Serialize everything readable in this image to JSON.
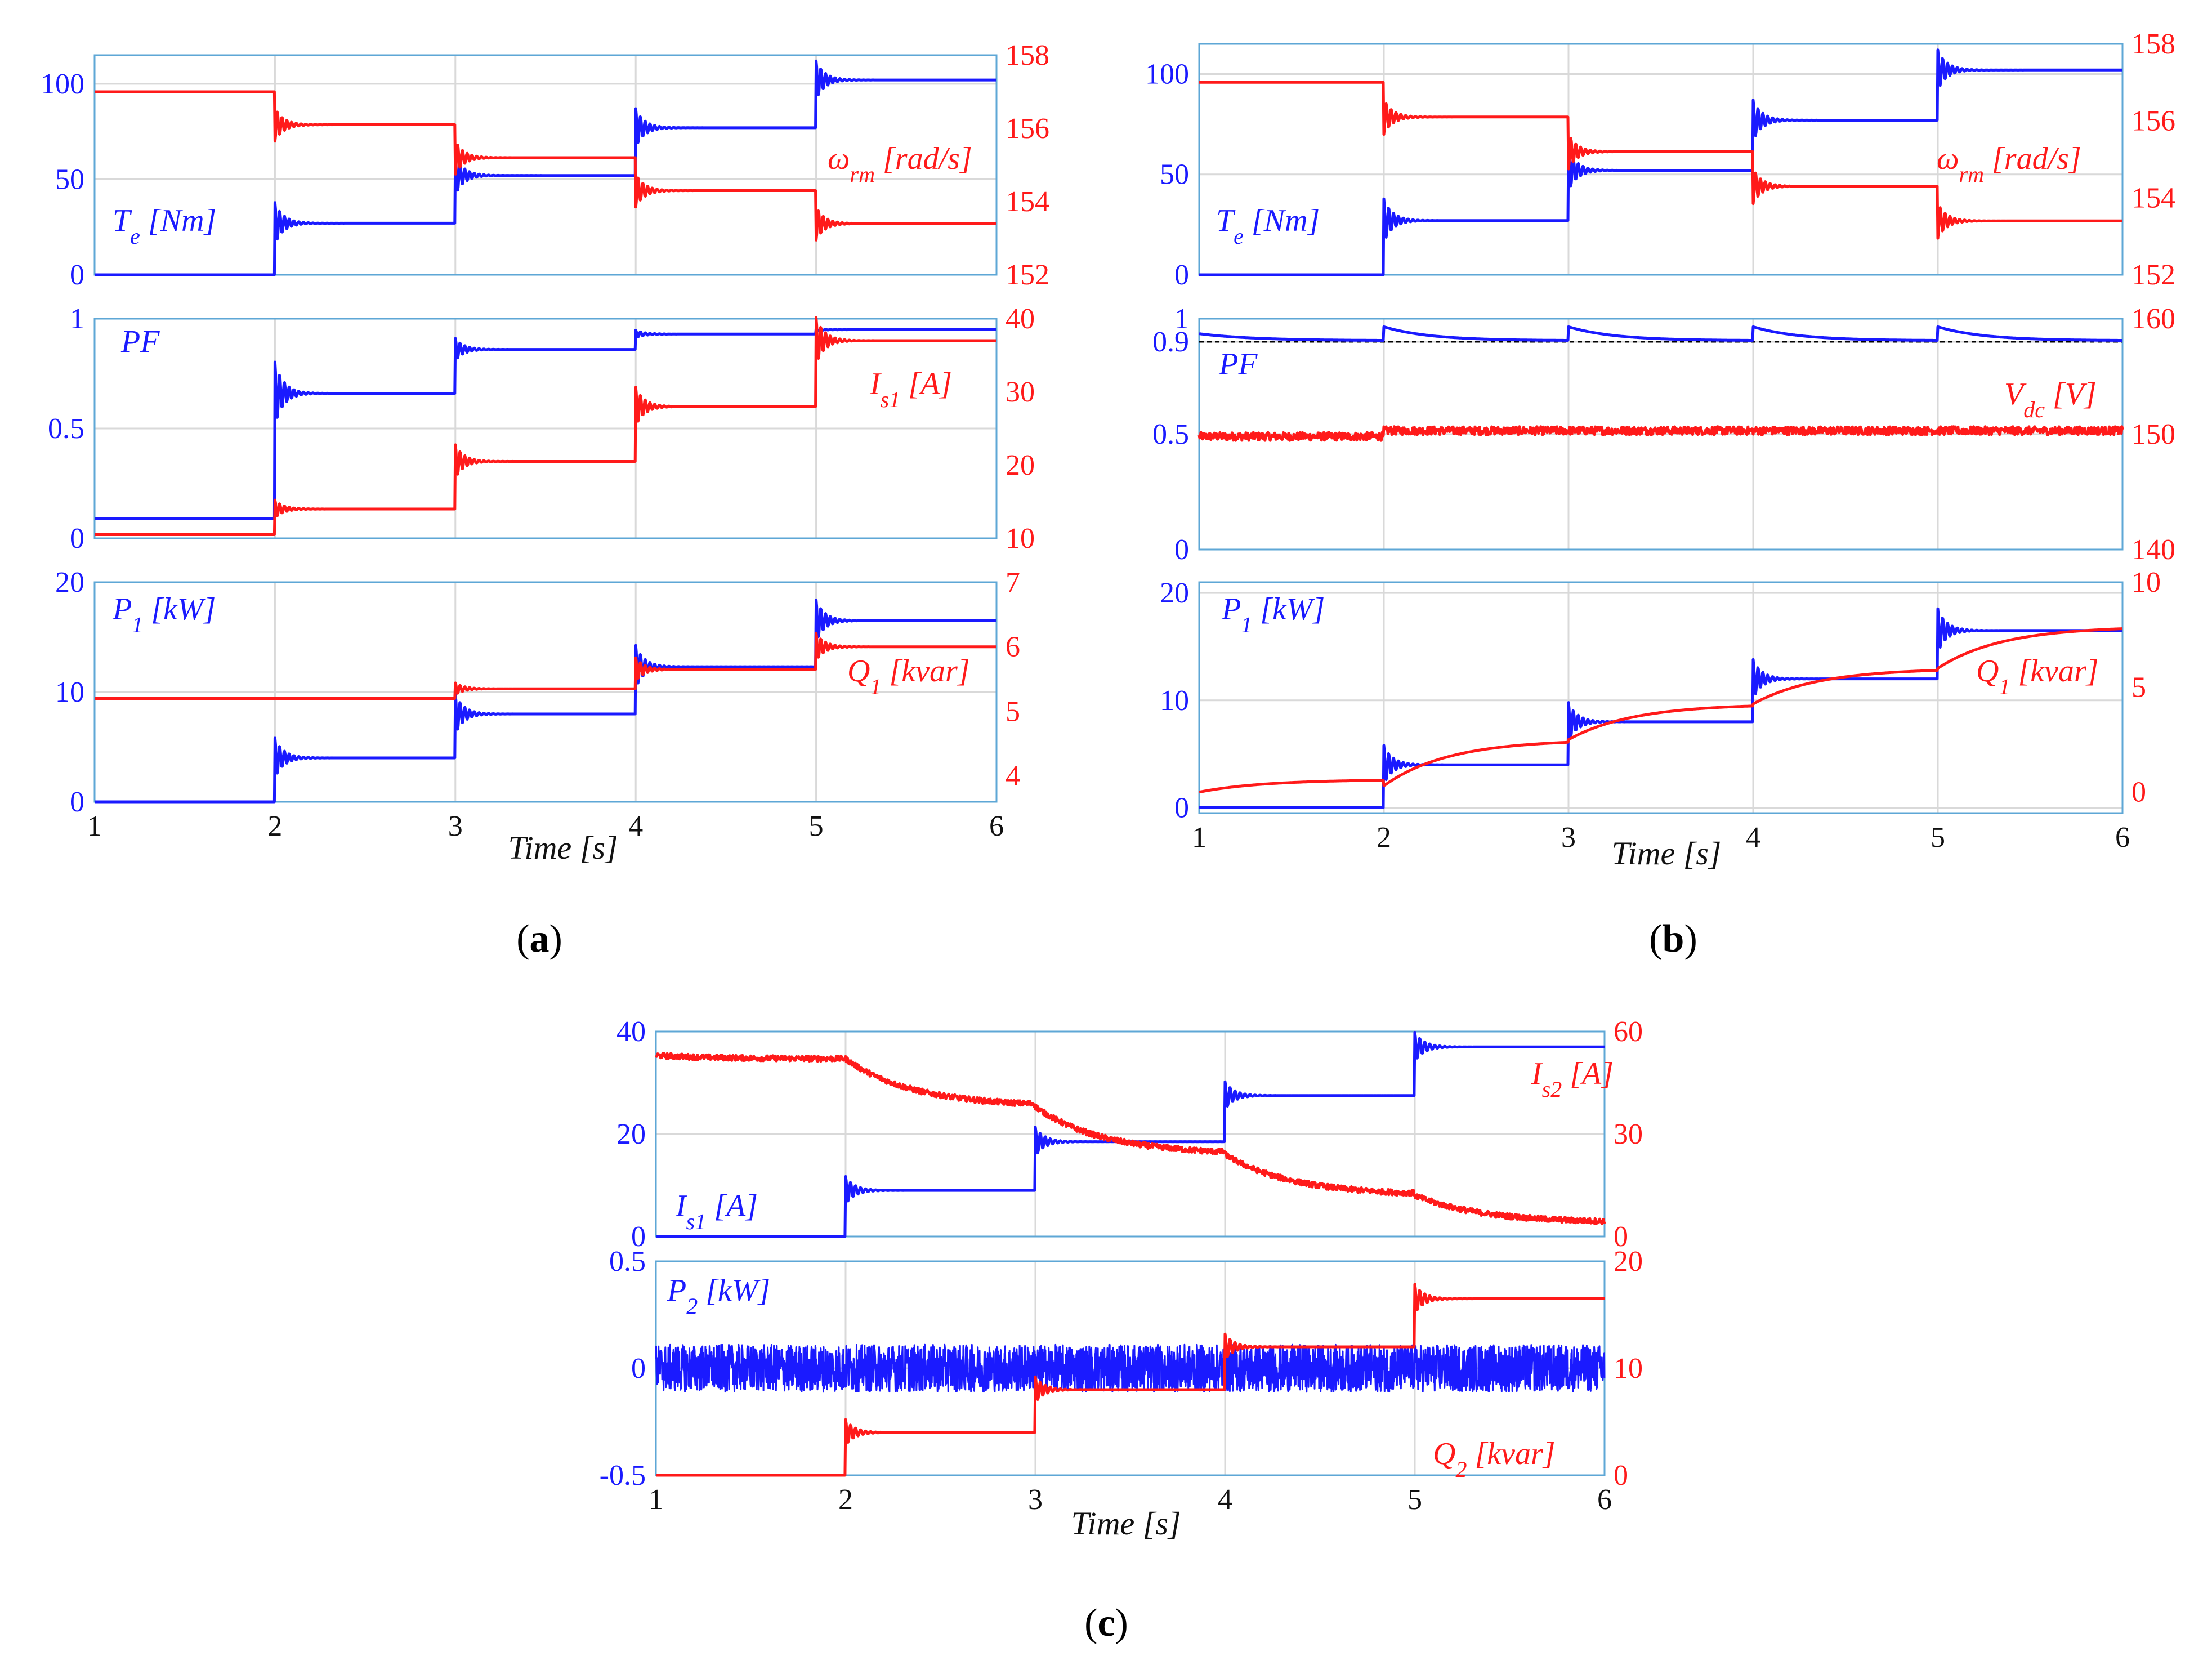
{
  "colors": {
    "blue": "#1a1aff",
    "red": "#ff1a1a",
    "grid": "#d9d9d9",
    "frame": "#5ea7d6",
    "ref": "#000000"
  },
  "captions": [
    "a",
    "b",
    "c"
  ],
  "chart_data": [
    {
      "id": "a1",
      "panel": "a",
      "type": "line",
      "x_range": [
        1,
        6
      ],
      "x_ticks": [
        1,
        2,
        3,
        4,
        5,
        6
      ],
      "show_x_ticks": false,
      "left_axis": {
        "ylim": [
          0,
          115
        ],
        "ticks": [
          0,
          50,
          100
        ],
        "tick_labels": [
          "0",
          "50",
          "100"
        ]
      },
      "right_axis": {
        "ylim": [
          152,
          158
        ],
        "ticks": [
          152,
          154,
          156,
          158
        ],
        "tick_labels": [
          "152",
          "154",
          "156",
          "158"
        ]
      },
      "series": [
        {
          "name": "Te [Nm]",
          "axis": "left",
          "color": "blue",
          "label": "T",
          "label_sub": "e",
          "label_suffix": " [Nm]",
          "steps": [
            [
              1,
              0
            ],
            [
              2,
              27
            ],
            [
              3,
              52
            ],
            [
              4,
              77
            ],
            [
              5,
              102
            ]
          ],
          "osc": 0.4,
          "noise": 0
        },
        {
          "name": "ωrm [rad/s]",
          "axis": "right",
          "color": "red",
          "label": "ω",
          "label_sub": "rm",
          "label_suffix": " [rad/s]",
          "steps": [
            [
              1,
              157.0
            ],
            [
              2,
              156.1
            ],
            [
              3,
              155.2
            ],
            [
              4,
              154.3
            ],
            [
              5,
              153.4
            ]
          ],
          "osc": 0.5,
          "noise": 0
        }
      ]
    },
    {
      "id": "a2",
      "panel": "a",
      "type": "line",
      "x_range": [
        1,
        6
      ],
      "x_ticks": [
        1,
        2,
        3,
        4,
        5,
        6
      ],
      "show_x_ticks": false,
      "left_axis": {
        "ylim": [
          0,
          1
        ],
        "ticks": [
          0,
          0.5,
          1
        ],
        "tick_labels": [
          "0",
          "0.5",
          "1"
        ]
      },
      "right_axis": {
        "ylim": [
          10,
          40
        ],
        "ticks": [
          10,
          20,
          30,
          40
        ],
        "tick_labels": [
          "10",
          "20",
          "30",
          "40"
        ]
      },
      "series": [
        {
          "name": "PF",
          "axis": "left",
          "color": "blue",
          "label": "PF",
          "label_sub": "",
          "label_suffix": "",
          "steps": [
            [
              1,
              0.09
            ],
            [
              2,
              0.66
            ],
            [
              3,
              0.86
            ],
            [
              4,
              0.93
            ],
            [
              5,
              0.95
            ]
          ],
          "osc": 0.25,
          "noise": 0
        },
        {
          "name": "Is1 [A]",
          "axis": "right",
          "color": "red",
          "label": "I",
          "label_sub": "s1",
          "label_suffix": " [A]",
          "steps": [
            [
              1,
              10.5
            ],
            [
              2,
              14
            ],
            [
              3,
              20.5
            ],
            [
              4,
              28
            ],
            [
              5,
              37
            ]
          ],
          "osc": 0.35,
          "noise": 0
        }
      ]
    },
    {
      "id": "a3",
      "panel": "a",
      "type": "line",
      "x_range": [
        1,
        6
      ],
      "x_ticks": [
        1,
        2,
        3,
        4,
        5,
        6
      ],
      "show_x_ticks": true,
      "x_tick_labels": [
        "1",
        "2",
        "3",
        "4",
        "5",
        "6"
      ],
      "xlabel": "Time [s]",
      "left_axis": {
        "ylim": [
          0,
          20
        ],
        "ticks": [
          0,
          10,
          20
        ],
        "tick_labels": [
          "0",
          "10",
          "20"
        ]
      },
      "right_axis": {
        "ylim": [
          3.6,
          7.0
        ],
        "ticks": [
          4,
          5,
          6,
          7
        ],
        "tick_labels": [
          "4",
          "5",
          "6",
          "7"
        ]
      },
      "series": [
        {
          "name": "P1 [kW]",
          "axis": "left",
          "color": "blue",
          "label": "P",
          "label_sub": "1",
          "label_suffix": " [kW]",
          "steps": [
            [
              1,
              0
            ],
            [
              2,
              4
            ],
            [
              3,
              8
            ],
            [
              4,
              12.3
            ],
            [
              5,
              16.5
            ]
          ],
          "osc": 0.45,
          "noise": 0
        },
        {
          "name": "Q1 [kvar]",
          "axis": "right",
          "color": "red",
          "label": "Q",
          "label_sub": "1",
          "label_suffix": " [kvar]",
          "steps": [
            [
              1,
              5.2
            ],
            [
              2,
              5.2
            ],
            [
              3,
              5.35
            ],
            [
              4,
              5.65
            ],
            [
              5,
              6.0
            ]
          ],
          "osc": 0.6,
          "noise": 0
        }
      ]
    },
    {
      "id": "b1",
      "panel": "b",
      "type": "line",
      "x_range": [
        1,
        6
      ],
      "x_ticks": [
        1,
        2,
        3,
        4,
        5,
        6
      ],
      "show_x_ticks": false,
      "left_axis": {
        "ylim": [
          0,
          115
        ],
        "ticks": [
          0,
          50,
          100
        ],
        "tick_labels": [
          "0",
          "50",
          "100"
        ]
      },
      "right_axis": {
        "ylim": [
          152,
          158
        ],
        "ticks": [
          152,
          154,
          156,
          158
        ],
        "tick_labels": [
          "152",
          "154",
          "156",
          "158"
        ]
      },
      "series": [
        {
          "name": "Te [Nm]",
          "axis": "left",
          "color": "blue",
          "label": "T",
          "label_sub": "e",
          "label_suffix": " [Nm]",
          "steps": [
            [
              1,
              0
            ],
            [
              2,
              27
            ],
            [
              3,
              52
            ],
            [
              4,
              77
            ],
            [
              5,
              102
            ]
          ],
          "osc": 0.4,
          "noise": 0
        },
        {
          "name": "ωrm [rad/s]",
          "axis": "right",
          "color": "red",
          "label": "ω",
          "label_sub": "rm",
          "label_suffix": " [rad/s]",
          "steps": [
            [
              1,
              157.0
            ],
            [
              2,
              156.1
            ],
            [
              3,
              155.2
            ],
            [
              4,
              154.3
            ],
            [
              5,
              153.4
            ]
          ],
          "osc": 0.5,
          "noise": 0
        }
      ]
    },
    {
      "id": "b2",
      "panel": "b",
      "type": "line",
      "x_range": [
        1,
        6
      ],
      "x_ticks": [
        1,
        2,
        3,
        4,
        5,
        6
      ],
      "show_x_ticks": false,
      "left_axis": {
        "ylim": [
          0,
          1
        ],
        "ticks": [
          0,
          0.5,
          0.9,
          1
        ],
        "tick_labels": [
          "0",
          "0.5",
          "0.9",
          "1"
        ]
      },
      "right_axis": {
        "ylim": [
          140,
          160
        ],
        "ticks": [
          140,
          150,
          160
        ],
        "tick_labels": [
          "140",
          "150",
          "160"
        ]
      },
      "reference_line": {
        "axis": "left",
        "value": 0.9
      },
      "series": [
        {
          "name": "PF",
          "axis": "left",
          "color": "blue",
          "label": "PF",
          "label_sub": "",
          "label_suffix": "",
          "steps": [
            [
              1,
              0.905
            ],
            [
              2,
              0.905
            ],
            [
              3,
              0.905
            ],
            [
              4,
              0.905
            ],
            [
              5,
              0.905
            ]
          ],
          "osc": 0.03,
          "noise": 0,
          "decay_bump": 0.06
        },
        {
          "name": "Vdc [V]",
          "axis": "right",
          "color": "red",
          "label": "V",
          "label_sub": "dc",
          "label_suffix": " [V]",
          "steps": [
            [
              1,
              149.8
            ],
            [
              2,
              150.3
            ],
            [
              3,
              150.3
            ],
            [
              4,
              150.3
            ],
            [
              5,
              150.3
            ]
          ],
          "osc": 0,
          "noise": 0.35
        }
      ]
    },
    {
      "id": "b3",
      "panel": "b",
      "type": "line",
      "x_range": [
        1,
        6
      ],
      "x_ticks": [
        1,
        2,
        3,
        4,
        5,
        6
      ],
      "show_x_ticks": true,
      "x_tick_labels": [
        "1",
        "2",
        "3",
        "4",
        "5",
        "6"
      ],
      "xlabel": "Time [s]",
      "left_axis": {
        "ylim": [
          -0.5,
          21
        ],
        "ticks": [
          0,
          10,
          20
        ],
        "tick_labels": [
          "0",
          "10",
          "20"
        ]
      },
      "right_axis": {
        "ylim": [
          -1,
          10
        ],
        "ticks": [
          0,
          5,
          10
        ],
        "tick_labels": [
          "0",
          "5",
          "10"
        ]
      },
      "series": [
        {
          "name": "P1 [kW]",
          "axis": "left",
          "color": "blue",
          "label": "P",
          "label_sub": "1",
          "label_suffix": " [kW]",
          "steps": [
            [
              1,
              0
            ],
            [
              2,
              4
            ],
            [
              3,
              8
            ],
            [
              4,
              12
            ],
            [
              5,
              16.5
            ]
          ],
          "osc": 0.45,
          "noise": 0
        },
        {
          "name": "Q1 [kvar]",
          "axis": "right",
          "color": "red",
          "label": "Q",
          "label_sub": "1",
          "label_suffix": " [kvar]",
          "steps": [
            [
              1,
              0.3
            ],
            [
              2,
              2.5
            ],
            [
              3,
              4.2
            ],
            [
              4,
              5.9
            ],
            [
              5,
              7.9
            ]
          ],
          "osc": 0,
          "noise": 0,
          "smooth": true,
          "start_value": [
            0,
            0.6
          ]
        }
      ]
    },
    {
      "id": "c1",
      "panel": "c",
      "type": "line",
      "x_range": [
        1,
        6
      ],
      "x_ticks": [
        1,
        2,
        3,
        4,
        5,
        6
      ],
      "show_x_ticks": false,
      "left_axis": {
        "ylim": [
          0,
          40
        ],
        "ticks": [
          0,
          20,
          40
        ],
        "tick_labels": [
          "0",
          "20",
          "40"
        ]
      },
      "right_axis": {
        "ylim": [
          0,
          60
        ],
        "ticks": [
          0,
          30,
          60
        ],
        "tick_labels": [
          "0",
          "30",
          "60"
        ]
      },
      "series": [
        {
          "name": "Is1 [A]",
          "axis": "left",
          "color": "blue",
          "label": "I",
          "label_sub": "s1",
          "label_suffix": " [A]",
          "steps": [
            [
              1,
              0
            ],
            [
              2,
              9
            ],
            [
              3,
              18.5
            ],
            [
              4,
              27.5
            ],
            [
              5,
              37
            ]
          ],
          "osc": 0.3,
          "noise": 0
        },
        {
          "name": "Is2 [A]",
          "axis": "right",
          "color": "red",
          "label": "I",
          "label_sub": "s2",
          "label_suffix": " [A]",
          "steps": [
            [
              1,
              52
            ],
            [
              2,
              38
            ],
            [
              3,
              24
            ],
            [
              4,
              12
            ],
            [
              5,
              4
            ]
          ],
          "osc": 0,
          "noise": 0.8,
          "smooth": true,
          "start_value": [
            53,
            52
          ]
        }
      ]
    },
    {
      "id": "c2",
      "panel": "c",
      "type": "line",
      "x_range": [
        1,
        6
      ],
      "x_ticks": [
        1,
        2,
        3,
        4,
        5,
        6
      ],
      "show_x_ticks": true,
      "x_tick_labels": [
        "1",
        "2",
        "3",
        "4",
        "5",
        "6"
      ],
      "xlabel": "Time [s]",
      "left_axis": {
        "ylim": [
          -0.5,
          0.5
        ],
        "ticks": [
          -0.5,
          0,
          0.5
        ],
        "tick_labels": [
          "-0.5",
          "0",
          "0.5"
        ]
      },
      "right_axis": {
        "ylim": [
          0,
          20
        ],
        "ticks": [
          0,
          10,
          20
        ],
        "tick_labels": [
          "0",
          "10",
          "20"
        ]
      },
      "series": [
        {
          "name": "P2 [kW]",
          "axis": "left",
          "color": "blue",
          "label": "P",
          "label_sub": "2",
          "label_suffix": " [kW]",
          "steps": [
            [
              1,
              0
            ],
            [
              2,
              0
            ],
            [
              3,
              0
            ],
            [
              4,
              0
            ],
            [
              5,
              0
            ]
          ],
          "osc": 0,
          "noise": 0.11
        },
        {
          "name": "Q2 [kvar]",
          "axis": "right",
          "color": "red",
          "label": "Q",
          "label_sub": "2",
          "label_suffix": " [kvar]",
          "steps": [
            [
              1,
              0
            ],
            [
              2,
              4
            ],
            [
              3,
              8
            ],
            [
              4,
              12
            ],
            [
              5,
              16.5
            ]
          ],
          "osc": 0.3,
          "noise": 0
        }
      ]
    }
  ]
}
